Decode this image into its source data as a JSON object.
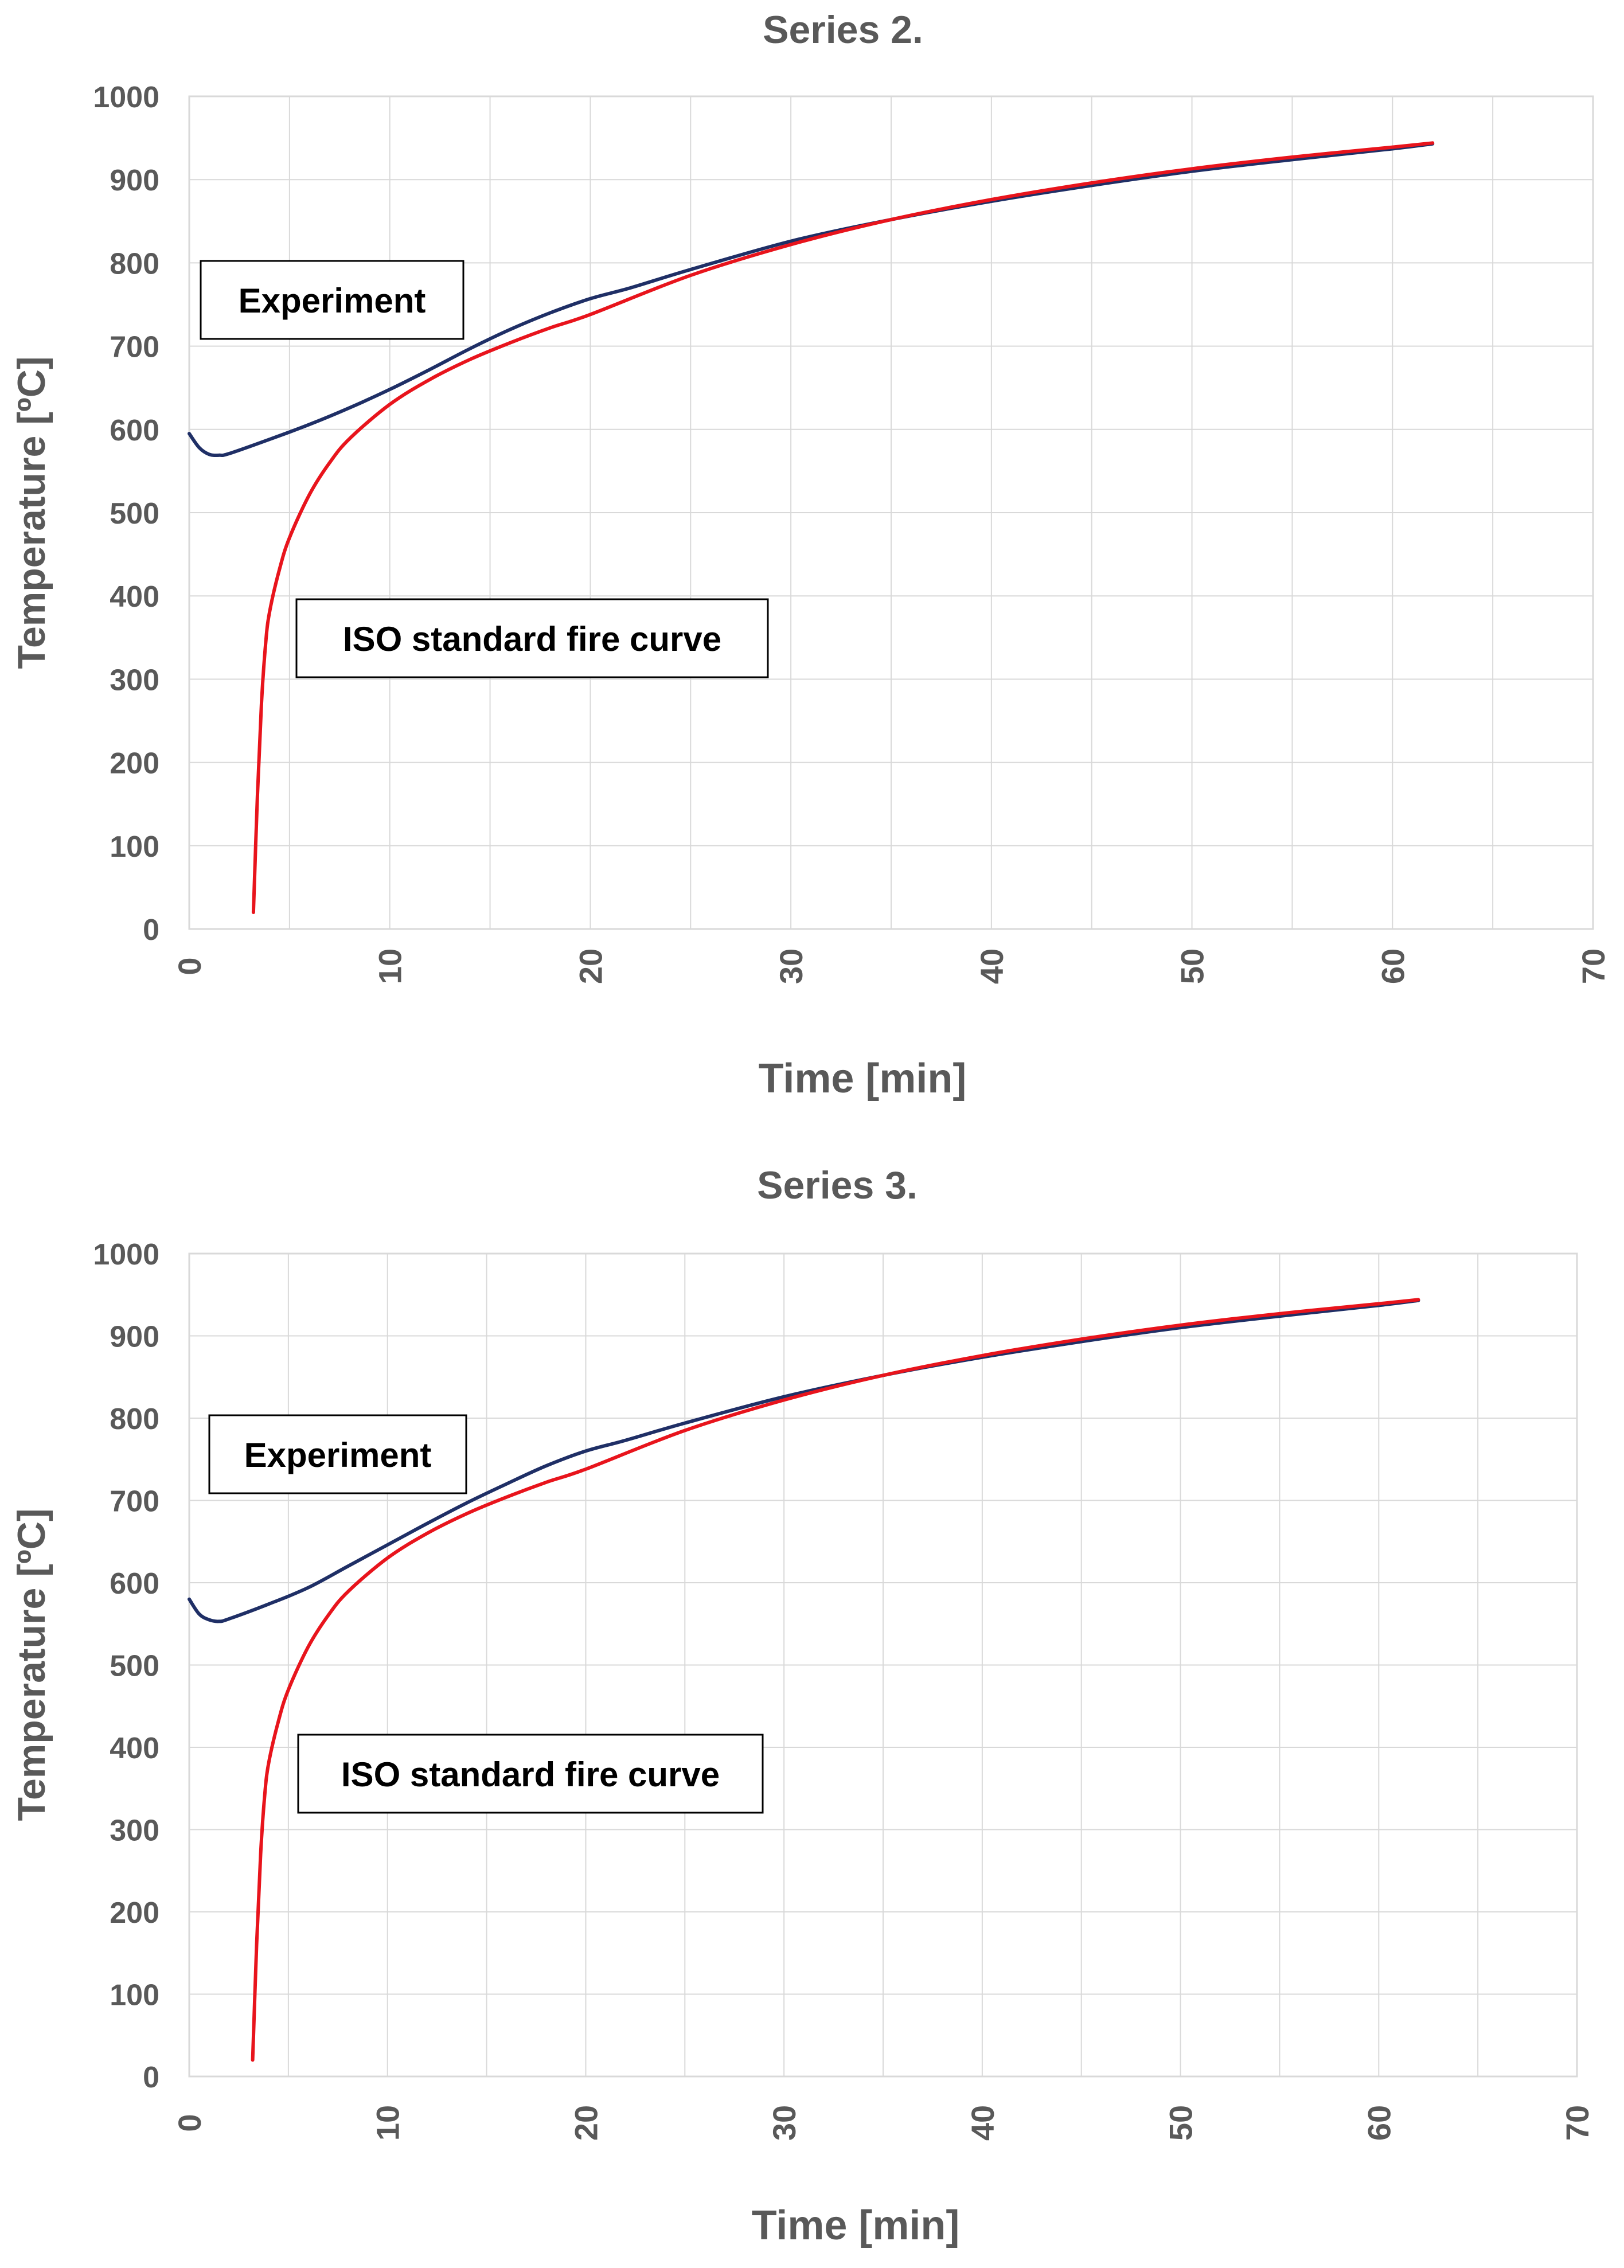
{
  "chart_data": [
    {
      "type": "line",
      "title": "Series 2.",
      "xlabel": "Time [min]",
      "ylabel": "Temperature [ºC]",
      "xlim": [
        0,
        70
      ],
      "ylim": [
        0,
        1000
      ],
      "x_ticks": [
        "0",
        "10",
        "20",
        "30",
        "40",
        "50",
        "60",
        "70"
      ],
      "y_ticks": [
        "0",
        "100",
        "200",
        "300",
        "400",
        "500",
        "600",
        "700",
        "800",
        "900",
        "1000"
      ],
      "grid": true,
      "annotations": [
        "Experiment",
        "ISO standard fire curve"
      ],
      "series": [
        {
          "color": "#1f2f66",
          "x": [
            0,
            0.5,
            1,
            1.5,
            2,
            4,
            6,
            8,
            10,
            12,
            14,
            16,
            18,
            20,
            22,
            25,
            30,
            35,
            40,
            45,
            50,
            55,
            60,
            62
          ],
          "y": [
            595,
            578,
            570,
            569,
            571,
            588,
            606,
            626,
            648,
            672,
            697,
            720,
            740,
            757,
            770,
            792,
            826,
            852,
            874,
            893,
            910,
            924,
            937,
            943
          ]
        },
        {
          "color": "#e8141c",
          "x": [
            3.2,
            3.4,
            3.6,
            3.8,
            4,
            4.5,
            5,
            6,
            7,
            8,
            10,
            12,
            14,
            16,
            18,
            20,
            25,
            30,
            35,
            40,
            45,
            50,
            55,
            60,
            62
          ],
          "y": [
            20,
            160,
            270,
            340,
            380,
            432,
            470,
            522,
            560,
            589,
            630,
            660,
            684,
            704,
            722,
            738,
            785,
            822,
            852,
            876,
            896,
            913,
            927,
            939,
            944
          ]
        }
      ]
    },
    {
      "type": "line",
      "title": "Series 3.",
      "xlabel": "Time [min]",
      "ylabel": "Temperature [ºC]",
      "xlim": [
        0,
        70
      ],
      "ylim": [
        0,
        1000
      ],
      "x_ticks": [
        "0",
        "10",
        "20",
        "30",
        "40",
        "50",
        "60",
        "70"
      ],
      "y_ticks": [
        "0",
        "100",
        "200",
        "300",
        "400",
        "500",
        "600",
        "700",
        "800",
        "900",
        "1000"
      ],
      "grid": true,
      "annotations": [
        "Experiment",
        "ISO standard fire curve"
      ],
      "series": [
        {
          "color": "#1f2f66",
          "x": [
            0,
            0.5,
            1,
            1.5,
            2,
            4,
            6,
            8,
            10,
            12,
            14,
            16,
            18,
            20,
            22,
            25,
            30,
            35,
            40,
            45,
            50,
            55,
            60,
            62
          ],
          "y": [
            580,
            562,
            555,
            553,
            556,
            574,
            594,
            620,
            646,
            672,
            697,
            720,
            742,
            760,
            773,
            794,
            826,
            852,
            874,
            893,
            910,
            924,
            937,
            943
          ]
        },
        {
          "color": "#e8141c",
          "x": [
            3.2,
            3.4,
            3.6,
            3.8,
            4,
            4.5,
            5,
            6,
            7,
            8,
            10,
            12,
            14,
            16,
            18,
            20,
            25,
            30,
            35,
            40,
            45,
            50,
            55,
            60,
            62
          ],
          "y": [
            20,
            160,
            270,
            340,
            380,
            432,
            470,
            522,
            560,
            589,
            630,
            660,
            684,
            704,
            722,
            738,
            785,
            822,
            852,
            876,
            896,
            913,
            927,
            939,
            944
          ]
        }
      ]
    }
  ]
}
